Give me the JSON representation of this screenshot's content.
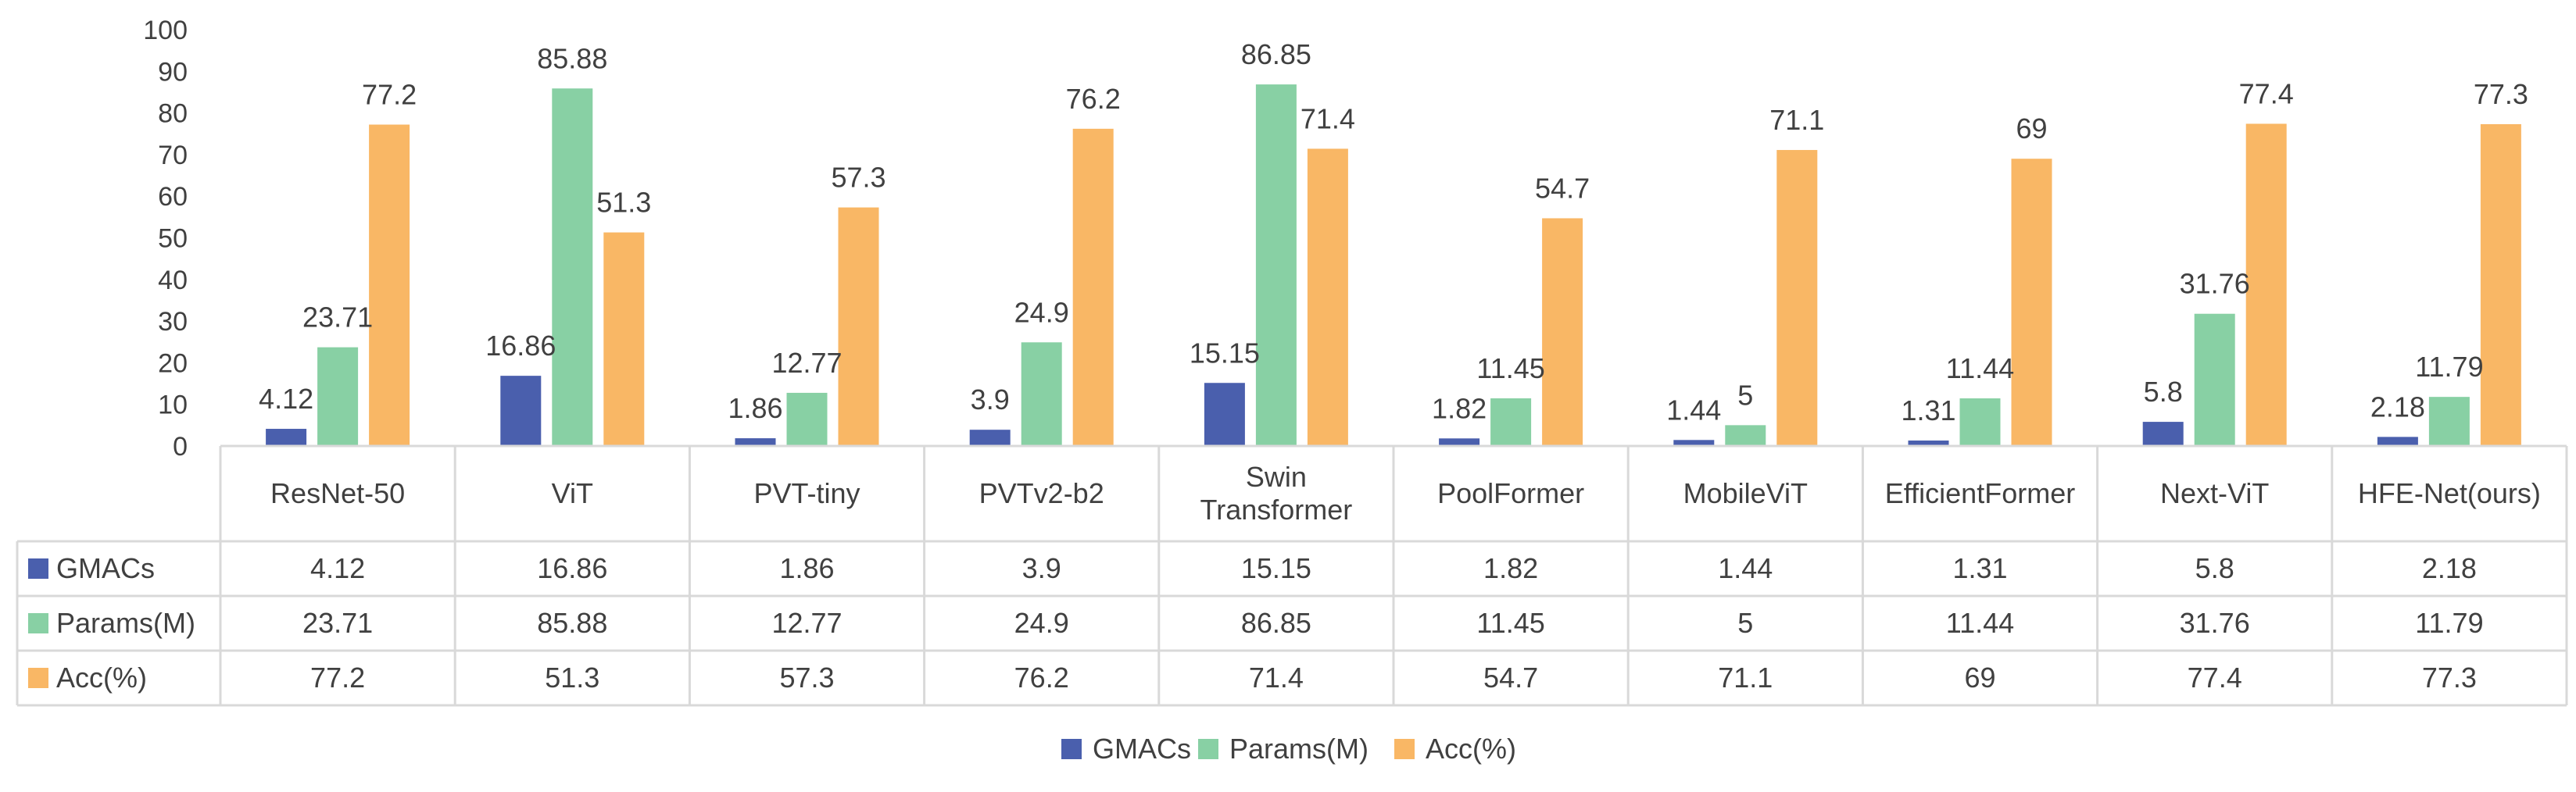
{
  "chart_data": {
    "type": "bar",
    "categories": [
      "ResNet-50",
      "ViT",
      "PVT-tiny",
      "PVTv2-b2",
      "Swin Transformer",
      "PoolFormer",
      "MobileViT",
      "EfficientFormer",
      "Next-ViT",
      "HFE-Net(ours)"
    ],
    "category_lines": [
      [
        "ResNet-50"
      ],
      [
        "ViT"
      ],
      [
        "PVT-tiny"
      ],
      [
        "PVTv2-b2"
      ],
      [
        "Swin",
        "Transformer"
      ],
      [
        "PoolFormer"
      ],
      [
        "MobileViT"
      ],
      [
        "EfficientFormer"
      ],
      [
        "Next-ViT"
      ],
      [
        "HFE-Net(ours)"
      ]
    ],
    "series": [
      {
        "name": "GMACs",
        "color": "#4a5fad",
        "values": [
          4.12,
          16.86,
          1.86,
          3.9,
          15.15,
          1.82,
          1.44,
          1.31,
          5.8,
          2.18
        ]
      },
      {
        "name": "Params(M)",
        "color": "#88d0a4",
        "values": [
          23.71,
          85.88,
          12.77,
          24.9,
          86.85,
          11.45,
          5,
          11.44,
          31.76,
          11.79
        ]
      },
      {
        "name": "Acc(%)",
        "color": "#f9b765",
        "values": [
          77.2,
          51.3,
          57.3,
          76.2,
          71.4,
          54.7,
          71.1,
          69,
          77.4,
          77.3
        ]
      }
    ],
    "ylim": [
      0,
      100
    ],
    "yticks": [
      0,
      10,
      20,
      30,
      40,
      50,
      60,
      70,
      80,
      90,
      100
    ],
    "title": "",
    "xlabel": "",
    "ylabel": "",
    "grid": false,
    "data_table": true,
    "legend_position": "bottom"
  }
}
